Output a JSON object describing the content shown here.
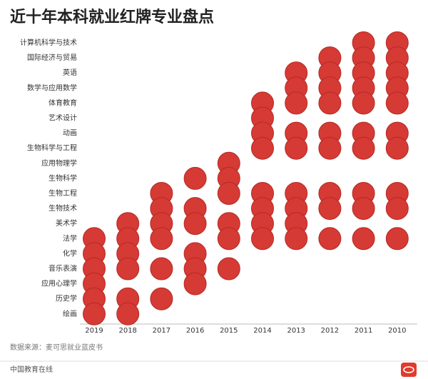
{
  "chart_data": {
    "type": "dot-matrix",
    "title": "近十年本科就业红牌专业盘点",
    "categories": [
      "计算机科学与技术",
      "国际经济与贸易",
      "英语",
      "数学与应用数学",
      "体育教育",
      "艺术设计",
      "动画",
      "生物科学与工程",
      "应用物理学",
      "生物科学",
      "生物工程",
      "生物技术",
      "美术学",
      "法学",
      "化学",
      "音乐表演",
      "应用心理学",
      "历史学",
      "绘画"
    ],
    "x": [
      "2019",
      "2018",
      "2017",
      "2016",
      "2015",
      "2014",
      "2013",
      "2012",
      "2011",
      "2010"
    ],
    "values": [
      [
        null,
        null,
        null,
        null,
        null,
        null,
        null,
        null,
        null,
        null,
        null,
        null,
        null,
        1,
        1,
        1,
        1,
        1,
        1
      ],
      [
        null,
        null,
        null,
        null,
        null,
        null,
        null,
        null,
        null,
        null,
        null,
        null,
        1,
        1,
        1,
        1,
        null,
        1,
        1
      ],
      [
        null,
        null,
        null,
        null,
        null,
        null,
        null,
        null,
        null,
        null,
        1,
        1,
        1,
        1,
        null,
        1,
        null,
        1,
        null
      ],
      [
        null,
        null,
        null,
        null,
        null,
        null,
        null,
        null,
        null,
        1,
        null,
        1,
        1,
        null,
        1,
        1,
        1,
        null,
        null
      ],
      [
        null,
        null,
        null,
        null,
        null,
        null,
        null,
        null,
        1,
        1,
        1,
        null,
        1,
        1,
        null,
        1,
        null,
        null,
        null
      ],
      [
        null,
        null,
        null,
        null,
        1,
        1,
        1,
        1,
        null,
        null,
        1,
        1,
        1,
        1,
        null,
        null,
        null,
        null,
        null
      ],
      [
        null,
        null,
        1,
        1,
        1,
        null,
        1,
        1,
        null,
        null,
        1,
        1,
        1,
        1,
        null,
        null,
        null,
        null,
        null
      ],
      [
        null,
        1,
        1,
        1,
        1,
        null,
        1,
        1,
        null,
        null,
        1,
        1,
        null,
        1,
        null,
        null,
        null,
        null,
        null
      ],
      [
        1,
        1,
        1,
        1,
        1,
        null,
        1,
        1,
        null,
        null,
        1,
        1,
        null,
        1,
        null,
        null,
        null,
        null,
        null
      ],
      [
        1,
        1,
        1,
        1,
        1,
        null,
        1,
        1,
        null,
        null,
        1,
        1,
        null,
        1,
        null,
        null,
        null,
        null,
        null
      ]
    ],
    "color": "#d63a34",
    "source": "数据来源：麦可思就业蓝皮书",
    "footer": "中国教育在线"
  }
}
